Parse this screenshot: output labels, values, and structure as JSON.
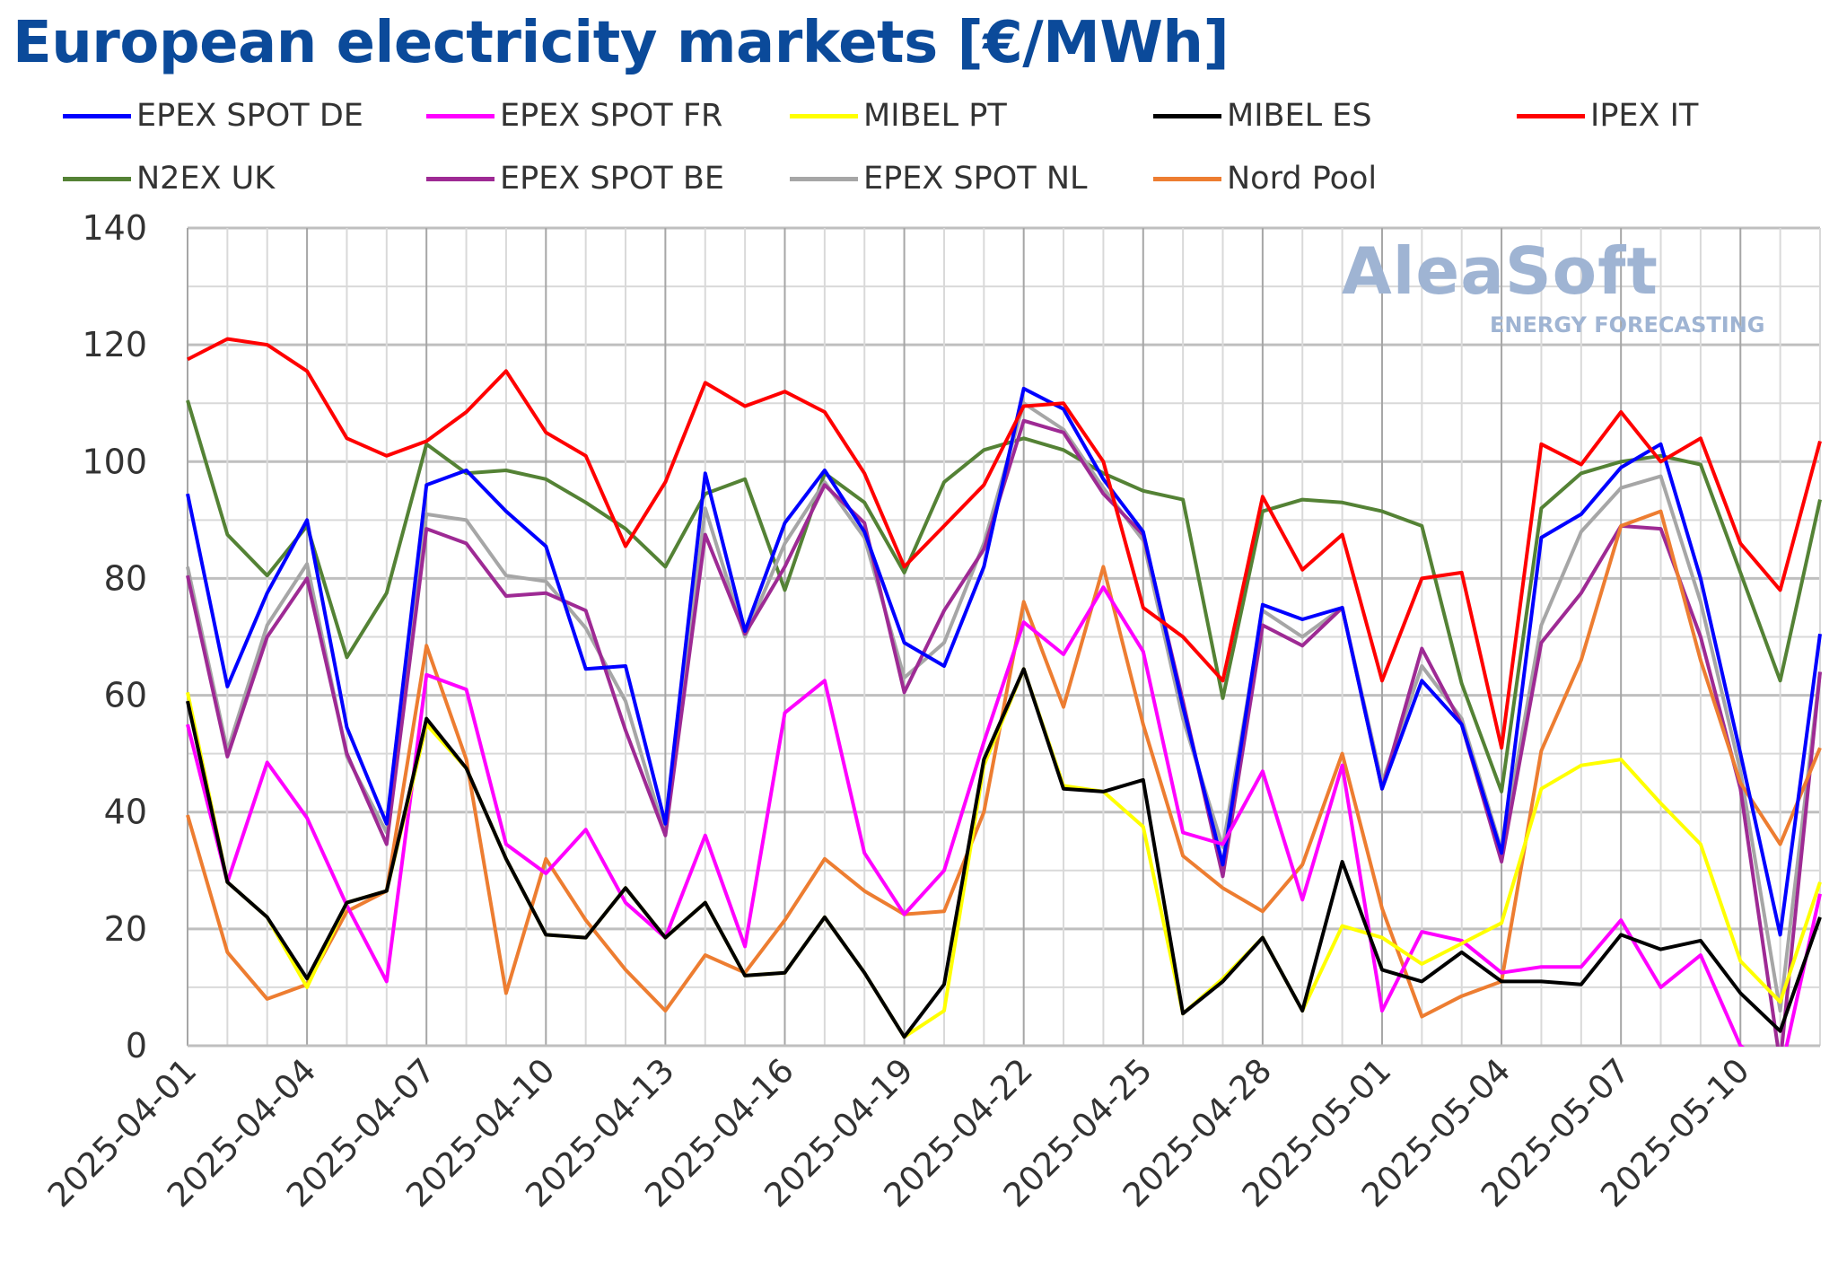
{
  "title": "European electricity markets [€/MWh]",
  "logo": {
    "name": "AleaSoft",
    "tagline": "ENERGY FORECASTING"
  },
  "chart_data": {
    "type": "line",
    "title": "European electricity markets [€/MWh]",
    "xlabel": "",
    "ylabel": "",
    "ylim": [
      0,
      140
    ],
    "yticks": [
      0,
      20,
      40,
      60,
      80,
      100,
      120,
      140
    ],
    "grid": true,
    "legend": "top",
    "x": [
      "2025-04-01",
      "2025-04-02",
      "2025-04-03",
      "2025-04-04",
      "2025-04-05",
      "2025-04-06",
      "2025-04-07",
      "2025-04-08",
      "2025-04-09",
      "2025-04-10",
      "2025-04-11",
      "2025-04-12",
      "2025-04-13",
      "2025-04-14",
      "2025-04-15",
      "2025-04-16",
      "2025-04-17",
      "2025-04-18",
      "2025-04-19",
      "2025-04-20",
      "2025-04-21",
      "2025-04-22",
      "2025-04-23",
      "2025-04-24",
      "2025-04-25",
      "2025-04-26",
      "2025-04-27",
      "2025-04-28",
      "2025-04-29",
      "2025-04-30",
      "2025-05-01",
      "2025-05-02",
      "2025-05-03",
      "2025-05-04",
      "2025-05-05",
      "2025-05-06",
      "2025-05-07",
      "2025-05-08",
      "2025-05-09",
      "2025-05-10",
      "2025-05-11",
      "2025-05-12"
    ],
    "xtick_labels": [
      "2025-04-01",
      "2025-04-04",
      "2025-04-07",
      "2025-04-10",
      "2025-04-13",
      "2025-04-16",
      "2025-04-19",
      "2025-04-22",
      "2025-04-25",
      "2025-04-28",
      "2025-05-01",
      "2025-05-04",
      "2025-05-07",
      "2025-05-10"
    ],
    "series": [
      {
        "name": "EPEX SPOT DE",
        "color": "#0000ff",
        "values": [
          94.5,
          61.5,
          77.5,
          90,
          54.5,
          38,
          96,
          98.5,
          91.5,
          85.5,
          64.5,
          65,
          38,
          98,
          71,
          89.5,
          98.5,
          88,
          69,
          65,
          82,
          112.5,
          109,
          97,
          88,
          58,
          31,
          75.5,
          73,
          75,
          44,
          62.5,
          55,
          33,
          87,
          91,
          99,
          103,
          80,
          50,
          19,
          70.5
        ]
      },
      {
        "name": "EPEX SPOT FR",
        "color": "#ff00ff",
        "values": [
          55,
          28,
          48.5,
          39,
          24,
          11,
          63.5,
          61,
          34.5,
          29.5,
          37,
          24.5,
          18.5,
          36,
          17,
          57,
          62.5,
          33,
          22.5,
          30,
          52,
          72.5,
          67,
          78.5,
          67.5,
          36.5,
          34.5,
          47,
          25,
          48,
          6,
          19.5,
          18,
          12.5,
          13.5,
          13.5,
          21.5,
          10,
          15.5,
          0,
          -5,
          26
        ]
      },
      {
        "name": "MIBEL PT",
        "color": "#ffff00",
        "values": [
          60.5,
          28,
          22,
          10,
          24.5,
          26.5,
          55,
          47.5,
          32,
          19,
          18.5,
          27,
          18.5,
          24.5,
          12,
          12.5,
          22,
          12.5,
          1.5,
          6,
          48,
          64.5,
          44.5,
          43.5,
          37.5,
          5.5,
          11.5,
          18.5,
          6,
          20.5,
          18.5,
          14,
          17.5,
          21,
          44,
          48,
          49,
          41.5,
          34.5,
          14.5,
          7.5,
          28
        ]
      },
      {
        "name": "MIBEL ES",
        "color": "#000000",
        "values": [
          59,
          28,
          22,
          11.5,
          24.5,
          26.5,
          56,
          47.5,
          32,
          19,
          18.5,
          27,
          18.5,
          24.5,
          12,
          12.5,
          22,
          12.5,
          1.5,
          10.5,
          49,
          64.5,
          44,
          43.5,
          45.5,
          5.5,
          11,
          18.5,
          6,
          31.5,
          13,
          11,
          16,
          11,
          11,
          10.5,
          19,
          16.5,
          18,
          9,
          2.5,
          22
        ]
      },
      {
        "name": "IPEX IT",
        "color": "#ff0000",
        "values": [
          117.5,
          121,
          120,
          115.5,
          104,
          101,
          103.5,
          108.5,
          115.5,
          105,
          101,
          85.5,
          96.5,
          113.5,
          109.5,
          112,
          108.5,
          98,
          82,
          89,
          96,
          109.5,
          110,
          100,
          75,
          70,
          62.5,
          94,
          81.5,
          87.5,
          62.5,
          80,
          81,
          51,
          103,
          99.5,
          108.5,
          100,
          104,
          86,
          78,
          103.5
        ]
      },
      {
        "name": "N2EX UK",
        "color": "#548235",
        "values": [
          110.5,
          87.5,
          80.5,
          89,
          66.5,
          77.5,
          103,
          98,
          98.5,
          97,
          93,
          88.5,
          82,
          94.5,
          97,
          78,
          98,
          93,
          81,
          96.5,
          102,
          104,
          102,
          98,
          95,
          93.5,
          59.5,
          91.5,
          93.5,
          93,
          91.5,
          89,
          62,
          43.5,
          92,
          98,
          100,
          101,
          99.5,
          81,
          62.5,
          93.5
        ]
      },
      {
        "name": "EPEX SPOT BE",
        "color": "#9e2a94",
        "values": [
          80.5,
          49.5,
          70,
          80,
          50,
          34.5,
          88.5,
          86,
          77,
          77.5,
          74.5,
          54,
          36,
          87.5,
          70.5,
          82,
          96,
          89.5,
          60.5,
          74.5,
          85,
          107,
          105,
          94.5,
          87.5,
          59,
          29,
          72,
          68.5,
          75,
          44,
          68,
          55,
          31.5,
          69,
          77.5,
          89,
          88.5,
          70,
          44,
          -3,
          64
        ]
      },
      {
        "name": "EPEX SPOT NL",
        "color": "#a6a6a6",
        "values": [
          82,
          50.5,
          72,
          82.5,
          49.5,
          36.5,
          91,
          90,
          80.5,
          79.5,
          71.5,
          59,
          36,
          92,
          70,
          86,
          96.5,
          87,
          63,
          69,
          86,
          110,
          105.5,
          95.5,
          86.5,
          56,
          34,
          74.5,
          70,
          75,
          45,
          65,
          56,
          33.5,
          72,
          88,
          95.5,
          97.5,
          76,
          47,
          6,
          64
        ]
      },
      {
        "name": "Nord Pool",
        "color": "#ed7d31",
        "values": [
          39.5,
          16,
          8,
          10.5,
          23,
          26.5,
          68.5,
          49,
          9,
          32,
          21.5,
          13,
          6,
          15.5,
          12.5,
          21.5,
          32,
          26.5,
          22.5,
          23,
          40,
          76,
          58,
          82,
          55,
          32.5,
          27,
          23,
          31,
          50,
          23.5,
          5,
          8.5,
          11,
          50.5,
          66,
          89,
          91.5,
          66,
          45,
          34.5,
          51
        ]
      }
    ]
  }
}
